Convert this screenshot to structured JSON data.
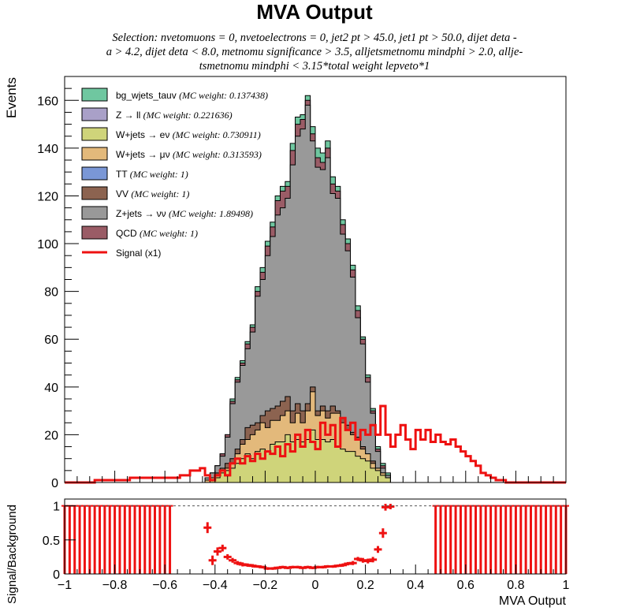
{
  "chart_data": [
    {
      "type": "stacked-histogram",
      "title": "MVA Output",
      "subtitle_lines": [
        "Selection: nvetomuons = 0, nvetoelectrons = 0, jet2 pt > 45.0, jet1 pt > 50.0, dijet deta -",
        "a > 4.2, dijet deta < 8.0, metnomu significance > 3.5, alljetsmetnomu mindphi > 2.0, allje-",
        "tsmetnomu mindphi < 3.15*total weight lepveto*1"
      ],
      "ylabel": "Events",
      "xlabel": "",
      "xlim": [
        -1.0,
        1.0
      ],
      "ylim": [
        0,
        170
      ],
      "yticks": [
        0,
        20,
        40,
        60,
        80,
        100,
        120,
        140,
        160
      ],
      "yticklabels": [
        "0",
        "20",
        "40",
        "60",
        "80",
        "100",
        "120",
        "140",
        "160"
      ],
      "bin_edges": [
        -0.44,
        -0.42,
        -0.4,
        -0.38,
        -0.36,
        -0.34,
        -0.32,
        -0.3,
        -0.28,
        -0.26,
        -0.24,
        -0.22,
        -0.2,
        -0.18,
        -0.16,
        -0.14,
        -0.12,
        -0.1,
        -0.08,
        -0.06,
        -0.04,
        -0.02,
        0.0,
        0.02,
        0.04,
        0.06,
        0.08,
        0.1,
        0.12,
        0.14,
        0.16,
        0.18,
        0.2,
        0.22,
        0.24,
        0.26,
        0.28,
        0.3
      ],
      "legend": [
        {
          "label": "bg_wjets_tauv",
          "weight": "(MC weight: 0.137438)",
          "color": "#6fc7a0",
          "kind": "fill"
        },
        {
          "label": "Z → ll",
          "weight": "(MC weight: 0.221636)",
          "color": "#a9a0c8",
          "kind": "fill"
        },
        {
          "label": "W+jets → eν",
          "weight": "(MC weight: 0.730911)",
          "color": "#cfd47a",
          "kind": "fill"
        },
        {
          "label": "W+jets → μν",
          "weight": "(MC weight: 0.313593)",
          "color": "#e3b97b",
          "kind": "fill"
        },
        {
          "label": "TT",
          "weight": "(MC weight: 1)",
          "color": "#7a97d6",
          "kind": "fill"
        },
        {
          "label": "VV",
          "weight": "(MC weight: 1)",
          "color": "#8c6350",
          "kind": "fill"
        },
        {
          "label": "Z+jets → νν",
          "weight": "(MC weight: 1.89498)",
          "color": "#999999",
          "kind": "fill"
        },
        {
          "label": "QCD",
          "weight": "(MC weight: 1)",
          "color": "#9a5c66",
          "kind": "fill"
        },
        {
          "label": "Signal (x1)",
          "weight": "",
          "color": "#ee1111",
          "kind": "line"
        }
      ],
      "series": [
        {
          "name": "W+jets → eν",
          "color": "#cfd47a",
          "cumulative": [
            0,
            1,
            2,
            4,
            5,
            6,
            8,
            10,
            12,
            10,
            13,
            14,
            13,
            16,
            17,
            17,
            20,
            17,
            18,
            17,
            18,
            22,
            18,
            18,
            17,
            18,
            15,
            14,
            13,
            13,
            11,
            10,
            9,
            6,
            5,
            3,
            2
          ]
        },
        {
          "name": "W+jets → μν",
          "color": "#e3b97b",
          "cumulative": [
            1,
            2,
            3,
            5,
            6,
            8,
            12,
            16,
            18,
            20,
            22,
            25,
            23,
            26,
            26,
            28,
            30,
            25,
            29,
            25,
            30,
            38,
            28,
            30,
            27,
            29,
            29,
            25,
            22,
            20,
            18,
            14,
            12,
            8,
            6,
            4,
            2
          ]
        },
        {
          "name": "VV",
          "color": "#8c6350",
          "cumulative": [
            1,
            2,
            4,
            6,
            8,
            10,
            14,
            18,
            23,
            24,
            25,
            28,
            30,
            31,
            32,
            34,
            36,
            30,
            33,
            30,
            33,
            40,
            30,
            32,
            30,
            32,
            30,
            27,
            24,
            21,
            19,
            15,
            12,
            9,
            6,
            4,
            2
          ]
        },
        {
          "name": "Z+jets → νν",
          "color": "#999999",
          "cumulative": [
            2,
            4,
            7,
            11,
            19,
            33,
            42,
            49,
            56,
            63,
            78,
            85,
            95,
            103,
            112,
            115,
            119,
            133,
            145,
            148,
            158,
            143,
            132,
            131,
            136,
            121,
            119,
            104,
            97,
            86,
            69,
            58,
            42,
            29,
            13,
            6,
            3
          ]
        },
        {
          "name": "QCD",
          "color": "#9a5c66",
          "cumulative": [
            2,
            4,
            7,
            12,
            20,
            34,
            43,
            50,
            58,
            65,
            80,
            88,
            99,
            107,
            118,
            122,
            124,
            139,
            150,
            152,
            160,
            146,
            136,
            134,
            140,
            125,
            122,
            108,
            100,
            89,
            72,
            60,
            44,
            30,
            14,
            7,
            3
          ]
        },
        {
          "name": "bg_wjets_tauv",
          "color": "#6fc7a0",
          "cumulative": [
            2,
            4,
            7,
            12,
            20,
            35,
            44,
            51,
            59,
            66,
            82,
            90,
            101,
            109,
            120,
            124,
            126,
            142,
            153,
            154,
            162,
            149,
            140,
            138,
            143,
            128,
            124,
            110,
            102,
            91,
            74,
            61,
            45,
            31,
            15,
            8,
            4
          ]
        }
      ],
      "signal": {
        "name": "Signal (x1)",
        "color": "#ee1111",
        "points": [
          [
            -1.0,
            0
          ],
          [
            -0.88,
            0
          ],
          [
            -0.88,
            1
          ],
          [
            -0.74,
            1
          ],
          [
            -0.74,
            2
          ],
          [
            -0.54,
            2
          ],
          [
            -0.54,
            3
          ],
          [
            -0.5,
            3
          ],
          [
            -0.5,
            5
          ],
          [
            -0.46,
            5
          ],
          [
            -0.46,
            6
          ],
          [
            -0.44,
            6
          ],
          [
            -0.44,
            3
          ],
          [
            -0.42,
            3
          ],
          [
            -0.42,
            1
          ],
          [
            -0.4,
            1
          ],
          [
            -0.4,
            3
          ],
          [
            -0.38,
            3
          ],
          [
            -0.38,
            5
          ],
          [
            -0.36,
            5
          ],
          [
            -0.36,
            3
          ],
          [
            -0.34,
            3
          ],
          [
            -0.34,
            8
          ],
          [
            -0.32,
            8
          ],
          [
            -0.32,
            10
          ],
          [
            -0.3,
            10
          ],
          [
            -0.3,
            8
          ],
          [
            -0.28,
            8
          ],
          [
            -0.28,
            11
          ],
          [
            -0.26,
            11
          ],
          [
            -0.26,
            9
          ],
          [
            -0.24,
            9
          ],
          [
            -0.24,
            12
          ],
          [
            -0.22,
            12
          ],
          [
            -0.22,
            10
          ],
          [
            -0.2,
            10
          ],
          [
            -0.2,
            13
          ],
          [
            -0.18,
            13
          ],
          [
            -0.18,
            12
          ],
          [
            -0.16,
            12
          ],
          [
            -0.16,
            15
          ],
          [
            -0.14,
            15
          ],
          [
            -0.14,
            11
          ],
          [
            -0.12,
            11
          ],
          [
            -0.12,
            16
          ],
          [
            -0.1,
            16
          ],
          [
            -0.1,
            13
          ],
          [
            -0.08,
            13
          ],
          [
            -0.08,
            20
          ],
          [
            -0.06,
            20
          ],
          [
            -0.06,
            15
          ],
          [
            -0.04,
            15
          ],
          [
            -0.04,
            22
          ],
          [
            -0.02,
            22
          ],
          [
            -0.02,
            17
          ],
          [
            0.0,
            17
          ],
          [
            0.0,
            14
          ],
          [
            0.02,
            14
          ],
          [
            0.02,
            25
          ],
          [
            0.04,
            25
          ],
          [
            0.04,
            20
          ],
          [
            0.06,
            20
          ],
          [
            0.06,
            24
          ],
          [
            0.08,
            24
          ],
          [
            0.08,
            15
          ],
          [
            0.1,
            15
          ],
          [
            0.1,
            27
          ],
          [
            0.12,
            27
          ],
          [
            0.12,
            22
          ],
          [
            0.14,
            22
          ],
          [
            0.14,
            25
          ],
          [
            0.16,
            25
          ],
          [
            0.16,
            18
          ],
          [
            0.18,
            18
          ],
          [
            0.18,
            22
          ],
          [
            0.2,
            22
          ],
          [
            0.2,
            20
          ],
          [
            0.22,
            20
          ],
          [
            0.22,
            24
          ],
          [
            0.24,
            24
          ],
          [
            0.24,
            20
          ],
          [
            0.26,
            20
          ],
          [
            0.26,
            32
          ],
          [
            0.28,
            32
          ],
          [
            0.28,
            20
          ],
          [
            0.3,
            20
          ],
          [
            0.3,
            15
          ],
          [
            0.32,
            15
          ],
          [
            0.32,
            20
          ],
          [
            0.34,
            20
          ],
          [
            0.34,
            24
          ],
          [
            0.36,
            24
          ],
          [
            0.36,
            18
          ],
          [
            0.38,
            18
          ],
          [
            0.38,
            14
          ],
          [
            0.4,
            14
          ],
          [
            0.4,
            22
          ],
          [
            0.42,
            22
          ],
          [
            0.42,
            18
          ],
          [
            0.44,
            18
          ],
          [
            0.44,
            22
          ],
          [
            0.46,
            22
          ],
          [
            0.46,
            17
          ],
          [
            0.48,
            17
          ],
          [
            0.48,
            20
          ],
          [
            0.5,
            20
          ],
          [
            0.5,
            17
          ],
          [
            0.52,
            17
          ],
          [
            0.52,
            16
          ],
          [
            0.54,
            16
          ],
          [
            0.54,
            18
          ],
          [
            0.56,
            18
          ],
          [
            0.56,
            15
          ],
          [
            0.58,
            15
          ],
          [
            0.58,
            13
          ],
          [
            0.6,
            13
          ],
          [
            0.6,
            11
          ],
          [
            0.62,
            11
          ],
          [
            0.62,
            9
          ],
          [
            0.64,
            9
          ],
          [
            0.64,
            7
          ],
          [
            0.66,
            7
          ],
          [
            0.66,
            4
          ],
          [
            0.68,
            4
          ],
          [
            0.68,
            3
          ],
          [
            0.7,
            3
          ],
          [
            0.7,
            2
          ],
          [
            0.72,
            2
          ],
          [
            0.72,
            1
          ],
          [
            0.76,
            1
          ],
          [
            0.76,
            0
          ],
          [
            1.0,
            0
          ]
        ]
      }
    },
    {
      "type": "scatter",
      "title": "",
      "ylabel": "Signal/Background",
      "xlabel": "MVA Output",
      "xlim": [
        -1.0,
        1.0
      ],
      "ylim": [
        0,
        1.1
      ],
      "xticks": [
        -1.0,
        -0.8,
        -0.6,
        -0.4,
        -0.2,
        0.0,
        0.2,
        0.4,
        0.6,
        0.8,
        1.0
      ],
      "xticklabels": [
        "−1",
        "−0.8",
        "−0.6",
        "−0.4",
        "−0.2",
        "0",
        "0.2",
        "0.4",
        "0.6",
        "0.8",
        "1"
      ],
      "yticks": [
        0,
        0.5,
        1
      ],
      "yticklabels": [
        "0",
        "0.5",
        "1"
      ],
      "reference_line": 1.0,
      "color": "#ee1111",
      "bars_left": {
        "from": -1.0,
        "to": -0.58,
        "step": 0.02,
        "value": 1.0
      },
      "bars_right": {
        "from": 0.48,
        "to": 1.0,
        "step": 0.02,
        "value": 1.0
      },
      "points": [
        {
          "x": -0.43,
          "y": 0.68,
          "yerr": 0.08
        },
        {
          "x": -0.41,
          "y": 0.2,
          "yerr": 0.07
        },
        {
          "x": -0.39,
          "y": 0.33,
          "yerr": 0.06
        },
        {
          "x": -0.37,
          "y": 0.38,
          "yerr": 0.05
        },
        {
          "x": -0.35,
          "y": 0.25,
          "yerr": 0.04
        },
        {
          "x": -0.33,
          "y": 0.2,
          "yerr": 0.035
        },
        {
          "x": -0.31,
          "y": 0.16,
          "yerr": 0.03
        },
        {
          "x": -0.29,
          "y": 0.14,
          "yerr": 0.03
        },
        {
          "x": -0.27,
          "y": 0.13,
          "yerr": 0.025
        },
        {
          "x": -0.25,
          "y": 0.12,
          "yerr": 0.025
        },
        {
          "x": -0.23,
          "y": 0.11,
          "yerr": 0.02
        },
        {
          "x": -0.21,
          "y": 0.1,
          "yerr": 0.02
        },
        {
          "x": -0.19,
          "y": 0.08,
          "yerr": 0.02
        },
        {
          "x": -0.17,
          "y": 0.08,
          "yerr": 0.02
        },
        {
          "x": -0.15,
          "y": 0.09,
          "yerr": 0.02
        },
        {
          "x": -0.13,
          "y": 0.1,
          "yerr": 0.02
        },
        {
          "x": -0.11,
          "y": 0.09,
          "yerr": 0.02
        },
        {
          "x": -0.09,
          "y": 0.1,
          "yerr": 0.02
        },
        {
          "x": -0.07,
          "y": 0.1,
          "yerr": 0.02
        },
        {
          "x": -0.05,
          "y": 0.09,
          "yerr": 0.02
        },
        {
          "x": -0.03,
          "y": 0.1,
          "yerr": 0.02
        },
        {
          "x": -0.01,
          "y": 0.09,
          "yerr": 0.02
        },
        {
          "x": 0.01,
          "y": 0.1,
          "yerr": 0.02
        },
        {
          "x": 0.03,
          "y": 0.1,
          "yerr": 0.02
        },
        {
          "x": 0.05,
          "y": 0.11,
          "yerr": 0.02
        },
        {
          "x": 0.07,
          "y": 0.11,
          "yerr": 0.02
        },
        {
          "x": 0.09,
          "y": 0.12,
          "yerr": 0.02
        },
        {
          "x": 0.11,
          "y": 0.13,
          "yerr": 0.025
        },
        {
          "x": 0.13,
          "y": 0.15,
          "yerr": 0.025
        },
        {
          "x": 0.15,
          "y": 0.16,
          "yerr": 0.03
        },
        {
          "x": 0.17,
          "y": 0.22,
          "yerr": 0.03
        },
        {
          "x": 0.19,
          "y": 0.2,
          "yerr": 0.035
        },
        {
          "x": 0.21,
          "y": 0.19,
          "yerr": 0.035
        },
        {
          "x": 0.23,
          "y": 0.21,
          "yerr": 0.04
        },
        {
          "x": 0.25,
          "y": 0.36,
          "yerr": 0.05
        },
        {
          "x": 0.27,
          "y": 0.6,
          "yerr": 0.07
        },
        {
          "x": 0.28,
          "y": 0.98,
          "yerr": 0.05
        },
        {
          "x": 0.3,
          "y": 0.99,
          "yerr": 0.04
        }
      ]
    }
  ]
}
